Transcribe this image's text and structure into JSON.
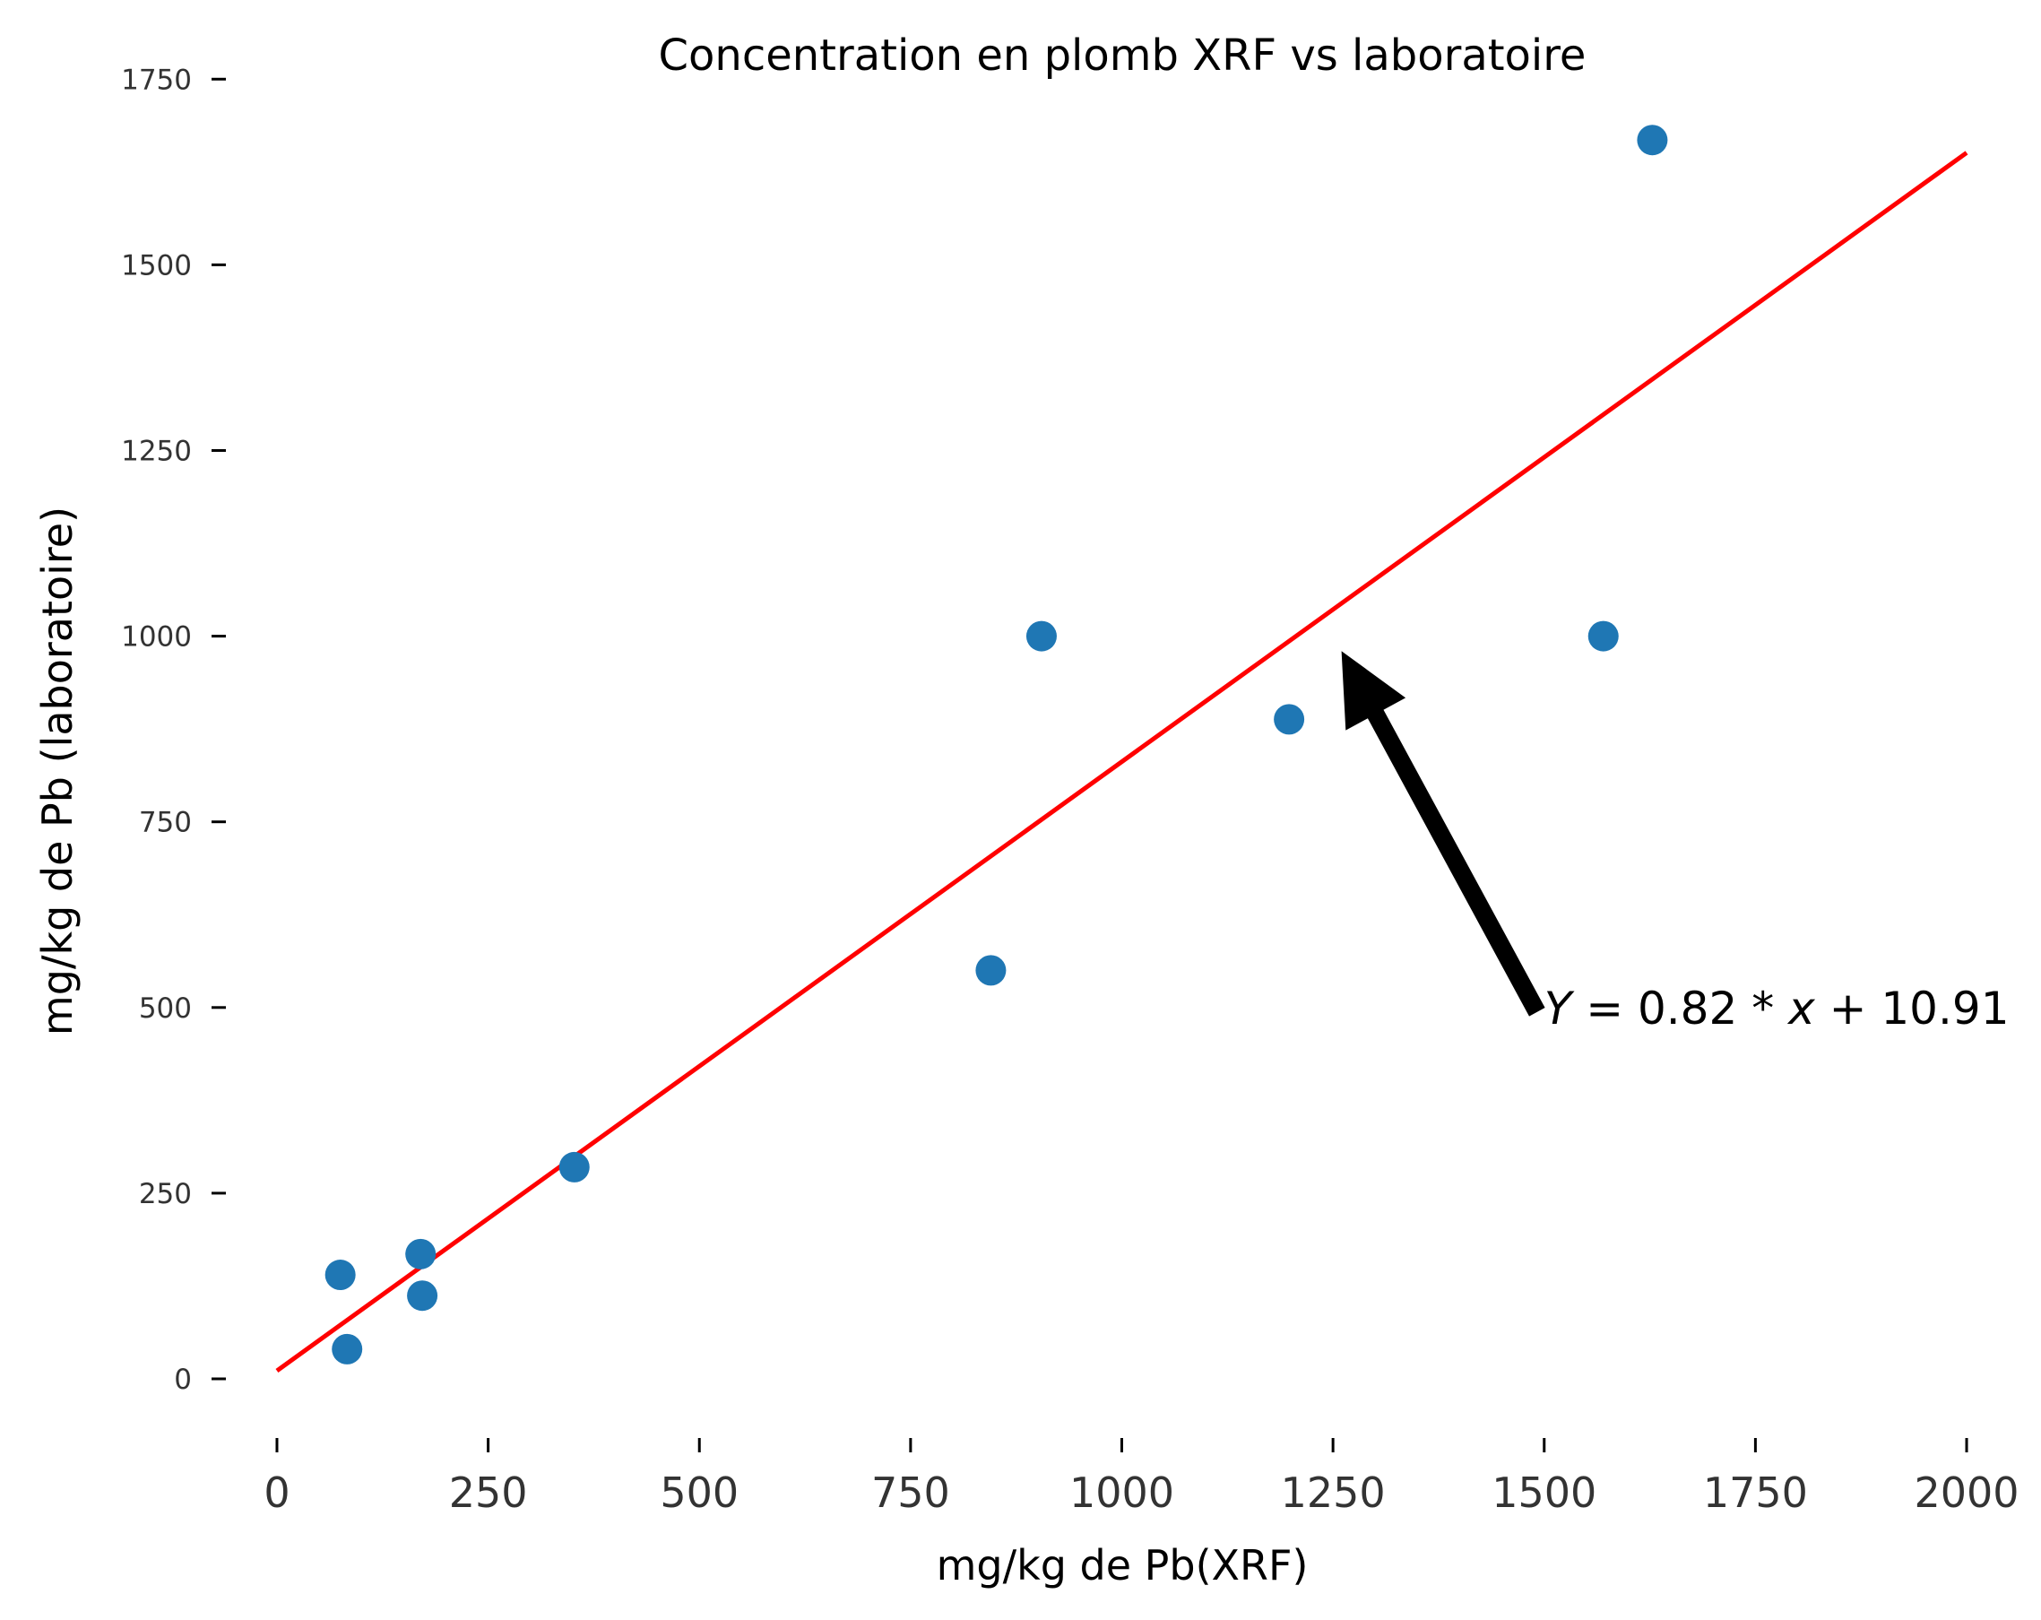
{
  "chart_data": {
    "type": "scatter",
    "title": "Concentration en plomb XRF vs laboratoire",
    "xlabel": "mg/kg de Pb(XRF)",
    "ylabel": "mg/kg de Pb (laboratoire)",
    "xlim": [
      -70,
      2070
    ],
    "ylim": [
      -70,
      1760
    ],
    "xticks": [
      0,
      250,
      500,
      750,
      1000,
      1250,
      1500,
      1750,
      2000
    ],
    "xtick_labels": [
      "0",
      "250",
      "500",
      "750",
      "1000",
      "1250",
      "1500",
      "1750",
      "2000"
    ],
    "yticks": [
      0,
      250,
      500,
      750,
      1000,
      1250,
      1500,
      1750
    ],
    "ytick_labels": [
      "0",
      "250",
      "500",
      "750",
      "1000",
      "1250",
      "1500",
      "1750"
    ],
    "grid": false,
    "points": [
      {
        "x": 75,
        "y": 140
      },
      {
        "x": 83,
        "y": 40
      },
      {
        "x": 170,
        "y": 168
      },
      {
        "x": 172,
        "y": 112
      },
      {
        "x": 352,
        "y": 285
      },
      {
        "x": 845,
        "y": 550
      },
      {
        "x": 905,
        "y": 1000
      },
      {
        "x": 1198,
        "y": 888
      },
      {
        "x": 1570,
        "y": 1000
      },
      {
        "x": 1628,
        "y": 1668
      }
    ],
    "point_color": "#1f77b4",
    "fit_line": {
      "slope": 0.82,
      "intercept": 10.91,
      "x_range": [
        0,
        2000
      ],
      "color": "#ff0000"
    },
    "annotation": {
      "text_parts": [
        "Y",
        " = 0.82 * ",
        "x",
        " + 10.91"
      ],
      "text_xy": [
        1500,
        500
      ],
      "arrow_tip": [
        1260,
        980
      ],
      "arrow_color": "#000000"
    }
  }
}
